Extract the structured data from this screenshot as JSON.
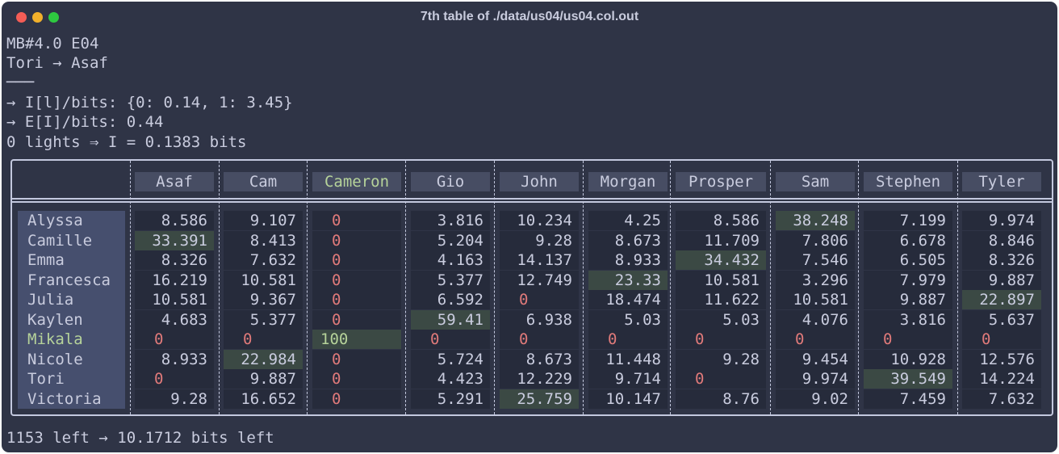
{
  "window": {
    "title": "7th table of ./data/us04/us04.col.out"
  },
  "header_lines": [
    "MB#4.0 E04",
    "Tori → Asaf",
    "───",
    "→ I[l]/bits: {0: 0.14, 1: 3.45}",
    "→ E[I]/bits: 0.44",
    "0 lights ⇒ I = 0.1383 bits"
  ],
  "table": {
    "columns": [
      "Asaf",
      "Cam",
      "Cameron",
      "Gio",
      "John",
      "Morgan",
      "Prosper",
      "Sam",
      "Stephen",
      "Tyler"
    ],
    "highlight_column": "Cameron",
    "highlight_row": "Mikala",
    "rows": [
      {
        "name": "Alyssa",
        "values": [
          "8.586",
          "9.107",
          "0",
          "3.816",
          "10.234",
          "4.25",
          "8.586",
          "38.248",
          "7.199",
          "9.974"
        ],
        "max": 7
      },
      {
        "name": "Camille",
        "values": [
          "33.391",
          "8.413",
          "0",
          "5.204",
          "9.28",
          "8.673",
          "11.709",
          "7.806",
          "6.678",
          "8.846"
        ],
        "max": 0
      },
      {
        "name": "Emma",
        "values": [
          "8.326",
          "7.632",
          "0",
          "4.163",
          "14.137",
          "8.933",
          "34.432",
          "7.546",
          "6.505",
          "8.326"
        ],
        "max": 6
      },
      {
        "name": "Francesca",
        "values": [
          "16.219",
          "10.581",
          "0",
          "5.377",
          "12.749",
          "23.33",
          "10.581",
          "3.296",
          "7.979",
          "9.887"
        ],
        "max": 5
      },
      {
        "name": "Julia",
        "values": [
          "10.581",
          "9.367",
          "0",
          "6.592",
          "0",
          "18.474",
          "11.622",
          "10.581",
          "9.887",
          "22.897"
        ],
        "max": 9
      },
      {
        "name": "Kaylen",
        "values": [
          "4.683",
          "5.377",
          "0",
          "59.41",
          "6.938",
          "5.03",
          "5.03",
          "4.076",
          "3.816",
          "5.637"
        ],
        "max": 3
      },
      {
        "name": "Mikala",
        "values": [
          "0",
          "0",
          "100",
          "0",
          "0",
          "0",
          "0",
          "0",
          "0",
          "0"
        ],
        "max": 2
      },
      {
        "name": "Nicole",
        "values": [
          "8.933",
          "22.984",
          "0",
          "5.724",
          "8.673",
          "11.448",
          "9.28",
          "9.454",
          "10.928",
          "12.576"
        ],
        "max": 1
      },
      {
        "name": "Tori",
        "values": [
          "0",
          "9.887",
          "0",
          "4.423",
          "12.229",
          "9.714",
          "0",
          "9.974",
          "39.549",
          "14.224"
        ],
        "max": 8
      },
      {
        "name": "Victoria",
        "values": [
          "9.28",
          "16.652",
          "0",
          "5.291",
          "25.759",
          "10.147",
          "8.76",
          "9.02",
          "7.459",
          "7.632"
        ],
        "max": 4
      }
    ]
  },
  "footer": "1153 left → 10.1712 bits left",
  "colors": {
    "background": "#2f3446",
    "text": "#c9ccde",
    "highlight": "#b6d39a",
    "zero": "#e07a7a",
    "max_cell": "#3b4944"
  }
}
